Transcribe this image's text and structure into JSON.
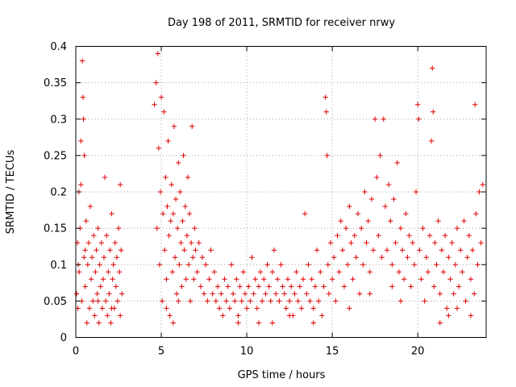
{
  "chart_data": {
    "type": "scatter",
    "title": "Day 198 of 2011, SRMTID for receiver nrwy",
    "xlabel": "GPS time / hours",
    "ylabel": "SRMTID / TECUs",
    "xlim": [
      0,
      24
    ],
    "ylim": [
      0,
      0.4
    ],
    "xticks": [
      0,
      5,
      10,
      15,
      20
    ],
    "xtick_labels": [
      "0",
      "5",
      "10",
      "15",
      "20"
    ],
    "yticks": [
      0,
      0.05,
      0.1,
      0.15,
      0.2,
      0.25,
      0.3,
      0.35,
      0.4
    ],
    "ytick_labels": [
      "0",
      "0.05",
      "0.1",
      "0.15",
      "0.2",
      "0.25",
      "0.3",
      "0.35",
      "0.4"
    ],
    "grid": true,
    "marker": "+",
    "color": "#e00000",
    "series": [
      {
        "name": "SRMTID",
        "points": [
          [
            0.05,
            0.06
          ],
          [
            0.1,
            0.13
          ],
          [
            0.12,
            0.04
          ],
          [
            0.18,
            0.2
          ],
          [
            0.2,
            0.09
          ],
          [
            0.25,
            0.15
          ],
          [
            0.3,
            0.21
          ],
          [
            0.35,
            0.05
          ],
          [
            0.38,
            0.38
          ],
          [
            0.42,
            0.33
          ],
          [
            0.45,
            0.3
          ],
          [
            0.48,
            0.11
          ],
          [
            0.5,
            0.25
          ],
          [
            0.55,
            0.07
          ],
          [
            0.6,
            0.16
          ],
          [
            0.65,
            0.02
          ],
          [
            0.7,
            0.1
          ],
          [
            0.75,
            0.13
          ],
          [
            0.8,
            0.04
          ],
          [
            0.85,
            0.18
          ],
          [
            0.9,
            0.08
          ],
          [
            0.95,
            0.11
          ],
          [
            1.0,
            0.05
          ],
          [
            1.05,
            0.14
          ],
          [
            1.1,
            0.03
          ],
          [
            1.15,
            0.09
          ],
          [
            1.2,
            0.12
          ],
          [
            1.25,
            0.06
          ],
          [
            1.3,
            0.15
          ],
          [
            1.35,
            0.02
          ],
          [
            1.4,
            0.1
          ],
          [
            1.45,
            0.07
          ],
          [
            1.5,
            0.13
          ],
          [
            1.55,
            0.04
          ],
          [
            1.6,
            0.08
          ],
          [
            1.65,
            0.11
          ],
          [
            1.7,
            0.22
          ],
          [
            1.75,
            0.05
          ],
          [
            1.8,
            0.14
          ],
          [
            1.85,
            0.03
          ],
          [
            1.9,
            0.09
          ],
          [
            1.95,
            0.06
          ],
          [
            2.0,
            0.12
          ],
          [
            2.05,
            0.02
          ],
          [
            2.1,
            0.17
          ],
          [
            2.15,
            0.08
          ],
          [
            2.2,
            0.1
          ],
          [
            2.25,
            0.04
          ],
          [
            2.3,
            0.13
          ],
          [
            2.35,
            0.07
          ],
          [
            2.4,
            0.11
          ],
          [
            2.45,
            0.05
          ],
          [
            2.5,
            0.15
          ],
          [
            2.55,
            0.09
          ],
          [
            2.6,
            0.03
          ],
          [
            2.65,
            0.12
          ],
          [
            2.7,
            0.06
          ],
          [
            2.6,
            0.21
          ],
          [
            0.3,
            0.27
          ],
          [
            0.15,
            0.1
          ],
          [
            0.55,
            0.12
          ],
          [
            1.3,
            0.05
          ],
          [
            2.1,
            0.04
          ],
          [
            4.6,
            0.32
          ],
          [
            4.7,
            0.35
          ],
          [
            4.75,
            0.15
          ],
          [
            4.8,
            0.39
          ],
          [
            4.85,
            0.26
          ],
          [
            4.9,
            0.1
          ],
          [
            4.95,
            0.2
          ],
          [
            5.0,
            0.33
          ],
          [
            5.05,
            0.05
          ],
          [
            5.1,
            0.17
          ],
          [
            5.15,
            0.31
          ],
          [
            5.2,
            0.12
          ],
          [
            5.25,
            0.22
          ],
          [
            5.3,
            0.08
          ],
          [
            5.35,
            0.18
          ],
          [
            5.4,
            0.27
          ],
          [
            5.45,
            0.14
          ],
          [
            5.5,
            0.03
          ],
          [
            5.55,
            0.16
          ],
          [
            5.6,
            0.21
          ],
          [
            5.65,
            0.09
          ],
          [
            5.7,
            0.17
          ],
          [
            5.75,
            0.29
          ],
          [
            5.8,
            0.11
          ],
          [
            5.85,
            0.19
          ],
          [
            5.9,
            0.06
          ],
          [
            5.95,
            0.15
          ],
          [
            6.0,
            0.24
          ],
          [
            6.05,
            0.1
          ],
          [
            6.1,
            0.2
          ],
          [
            6.15,
            0.13
          ],
          [
            6.2,
            0.07
          ],
          [
            6.25,
            0.16
          ],
          [
            6.3,
            0.25
          ],
          [
            6.35,
            0.12
          ],
          [
            6.4,
            0.18
          ],
          [
            6.45,
            0.08
          ],
          [
            6.5,
            0.14
          ],
          [
            6.55,
            0.22
          ],
          [
            6.6,
            0.1
          ],
          [
            6.65,
            0.17
          ],
          [
            6.7,
            0.05
          ],
          [
            6.75,
            0.13
          ],
          [
            6.8,
            0.29
          ],
          [
            6.85,
            0.11
          ],
          [
            6.9,
            0.08
          ],
          [
            6.95,
            0.15
          ],
          [
            7.0,
            0.12
          ],
          [
            7.1,
            0.09
          ],
          [
            7.2,
            0.13
          ],
          [
            7.3,
            0.07
          ],
          [
            7.4,
            0.11
          ],
          [
            7.5,
            0.06
          ],
          [
            7.6,
            0.1
          ],
          [
            7.7,
            0.05
          ],
          [
            7.8,
            0.08
          ],
          [
            7.9,
            0.12
          ],
          [
            8.0,
            0.06
          ],
          [
            8.1,
            0.09
          ],
          [
            5.3,
            0.04
          ],
          [
            5.7,
            0.02
          ],
          [
            6.0,
            0.05
          ],
          [
            8.2,
            0.05
          ],
          [
            8.3,
            0.07
          ],
          [
            8.4,
            0.04
          ],
          [
            8.5,
            0.06
          ],
          [
            8.6,
            0.03
          ],
          [
            8.7,
            0.08
          ],
          [
            8.8,
            0.05
          ],
          [
            8.9,
            0.07
          ],
          [
            9.0,
            0.04
          ],
          [
            9.1,
            0.1
          ],
          [
            9.2,
            0.06
          ],
          [
            9.3,
            0.05
          ],
          [
            9.4,
            0.08
          ],
          [
            9.5,
            0.03
          ],
          [
            9.6,
            0.07
          ],
          [
            9.7,
            0.05
          ],
          [
            9.8,
            0.09
          ],
          [
            9.9,
            0.06
          ],
          [
            10.0,
            0.04
          ],
          [
            10.1,
            0.07
          ],
          [
            10.2,
            0.05
          ],
          [
            10.3,
            0.11
          ],
          [
            10.4,
            0.06
          ],
          [
            10.5,
            0.08
          ],
          [
            10.6,
            0.04
          ],
          [
            10.7,
            0.07
          ],
          [
            10.8,
            0.09
          ],
          [
            10.9,
            0.05
          ],
          [
            11.0,
            0.08
          ],
          [
            11.1,
            0.06
          ],
          [
            11.2,
            0.1
          ],
          [
            11.3,
            0.07
          ],
          [
            11.4,
            0.05
          ],
          [
            11.5,
            0.09
          ],
          [
            11.6,
            0.12
          ],
          [
            11.7,
            0.06
          ],
          [
            11.8,
            0.08
          ],
          [
            11.9,
            0.05
          ],
          [
            12.0,
            0.1
          ],
          [
            12.1,
            0.07
          ],
          [
            12.2,
            0.06
          ],
          [
            12.3,
            0.04
          ],
          [
            12.4,
            0.08
          ],
          [
            12.5,
            0.05
          ],
          [
            12.6,
            0.07
          ],
          [
            12.7,
            0.03
          ],
          [
            12.8,
            0.06
          ],
          [
            12.9,
            0.09
          ],
          [
            13.0,
            0.05
          ],
          [
            13.1,
            0.07
          ],
          [
            13.2,
            0.04
          ],
          [
            13.3,
            0.08
          ],
          [
            13.4,
            0.17
          ],
          [
            13.5,
            0.06
          ],
          [
            13.6,
            0.1
          ],
          [
            13.7,
            0.05
          ],
          [
            13.8,
            0.08
          ],
          [
            13.9,
            0.04
          ],
          [
            14.0,
            0.07
          ],
          [
            14.1,
            0.12
          ],
          [
            14.2,
            0.05
          ],
          [
            14.3,
            0.09
          ],
          [
            14.4,
            0.03
          ],
          [
            14.5,
            0.07
          ],
          [
            9.5,
            0.02
          ],
          [
            10.7,
            0.02
          ],
          [
            11.5,
            0.02
          ],
          [
            12.5,
            0.03
          ],
          [
            13.9,
            0.02
          ],
          [
            14.6,
            0.33
          ],
          [
            14.65,
            0.31
          ],
          [
            14.7,
            0.25
          ],
          [
            14.75,
            0.1
          ],
          [
            14.8,
            0.06
          ],
          [
            14.9,
            0.13
          ],
          [
            15.0,
            0.08
          ],
          [
            15.1,
            0.11
          ],
          [
            15.2,
            0.05
          ],
          [
            15.3,
            0.14
          ],
          [
            15.4,
            0.09
          ],
          [
            15.5,
            0.16
          ],
          [
            15.6,
            0.12
          ],
          [
            15.7,
            0.07
          ],
          [
            15.8,
            0.15
          ],
          [
            15.9,
            0.1
          ],
          [
            16.0,
            0.18
          ],
          [
            16.1,
            0.13
          ],
          [
            16.2,
            0.08
          ],
          [
            16.3,
            0.14
          ],
          [
            16.4,
            0.11
          ],
          [
            16.5,
            0.17
          ],
          [
            16.6,
            0.06
          ],
          [
            16.7,
            0.15
          ],
          [
            16.8,
            0.1
          ],
          [
            16.9,
            0.2
          ],
          [
            17.0,
            0.13
          ],
          [
            17.1,
            0.16
          ],
          [
            17.2,
            0.09
          ],
          [
            17.3,
            0.19
          ],
          [
            17.4,
            0.12
          ],
          [
            17.5,
            0.3
          ],
          [
            17.6,
            0.22
          ],
          [
            17.7,
            0.14
          ],
          [
            17.8,
            0.25
          ],
          [
            17.9,
            0.11
          ],
          [
            18.0,
            0.3
          ],
          [
            18.1,
            0.18
          ],
          [
            18.2,
            0.12
          ],
          [
            18.3,
            0.21
          ],
          [
            18.4,
            0.16
          ],
          [
            18.5,
            0.1
          ],
          [
            18.6,
            0.19
          ],
          [
            18.7,
            0.13
          ],
          [
            18.8,
            0.24
          ],
          [
            18.9,
            0.09
          ],
          [
            19.0,
            0.15
          ],
          [
            19.1,
            0.12
          ],
          [
            19.2,
            0.08
          ],
          [
            19.3,
            0.17
          ],
          [
            19.4,
            0.11
          ],
          [
            19.5,
            0.14
          ],
          [
            19.6,
            0.07
          ],
          [
            19.7,
            0.13
          ],
          [
            19.8,
            0.1
          ],
          [
            19.9,
            0.2
          ],
          [
            17.2,
            0.06
          ],
          [
            16.0,
            0.04
          ],
          [
            18.5,
            0.07
          ],
          [
            19.0,
            0.05
          ],
          [
            20.0,
            0.32
          ],
          [
            20.05,
            0.3
          ],
          [
            20.1,
            0.12
          ],
          [
            20.2,
            0.08
          ],
          [
            20.3,
            0.15
          ],
          [
            20.4,
            0.05
          ],
          [
            20.5,
            0.11
          ],
          [
            20.6,
            0.09
          ],
          [
            20.7,
            0.14
          ],
          [
            20.8,
            0.27
          ],
          [
            20.85,
            0.37
          ],
          [
            20.9,
            0.31
          ],
          [
            20.95,
            0.07
          ],
          [
            21.0,
            0.13
          ],
          [
            21.1,
            0.1
          ],
          [
            21.2,
            0.16
          ],
          [
            21.3,
            0.06
          ],
          [
            21.4,
            0.12
          ],
          [
            21.5,
            0.09
          ],
          [
            21.6,
            0.14
          ],
          [
            21.7,
            0.04
          ],
          [
            21.8,
            0.11
          ],
          [
            21.9,
            0.08
          ],
          [
            22.0,
            0.13
          ],
          [
            22.1,
            0.06
          ],
          [
            22.2,
            0.1
          ],
          [
            22.3,
            0.15
          ],
          [
            22.4,
            0.07
          ],
          [
            22.5,
            0.12
          ],
          [
            22.6,
            0.09
          ],
          [
            22.7,
            0.16
          ],
          [
            22.8,
            0.05
          ],
          [
            22.9,
            0.11
          ],
          [
            23.0,
            0.14
          ],
          [
            23.1,
            0.08
          ],
          [
            23.2,
            0.12
          ],
          [
            23.3,
            0.06
          ],
          [
            23.35,
            0.32
          ],
          [
            23.4,
            0.17
          ],
          [
            23.5,
            0.1
          ],
          [
            23.6,
            0.2
          ],
          [
            23.7,
            0.13
          ],
          [
            23.8,
            0.21
          ],
          [
            21.3,
            0.02
          ],
          [
            21.8,
            0.03
          ],
          [
            22.3,
            0.04
          ],
          [
            23.1,
            0.03
          ]
        ]
      }
    ]
  }
}
